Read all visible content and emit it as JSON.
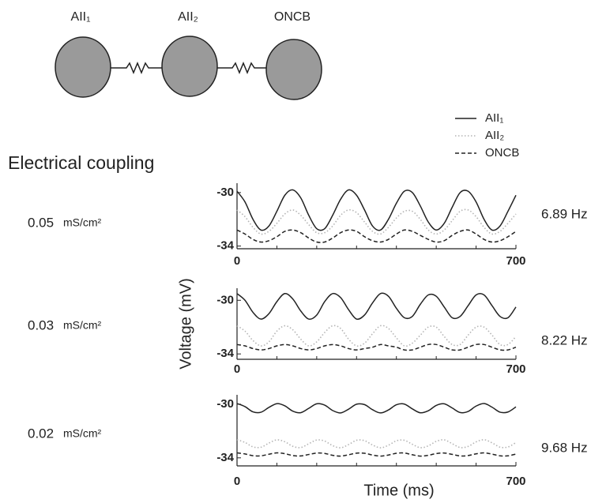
{
  "diagram": {
    "cells": [
      "AII₁",
      "AII₂",
      "ONCB"
    ]
  },
  "heading": "Electrical coupling",
  "chart_data": [
    {
      "type": "line",
      "coupling": "0.05",
      "coupling_unit": "mS/cm²",
      "frequency": "6.89 Hz",
      "x": [
        0,
        20,
        40,
        60,
        80,
        100,
        120,
        140,
        160,
        180,
        200,
        220,
        240,
        260,
        280,
        300,
        320,
        340,
        360,
        380,
        400,
        420,
        440,
        460,
        480,
        500,
        520,
        540,
        560,
        580,
        600,
        620,
        640,
        660,
        680,
        700
      ],
      "xlim": [
        0,
        700
      ],
      "xticks": [
        0,
        700
      ],
      "xminorticks": [
        100,
        200,
        300,
        400,
        500,
        600
      ],
      "ylim": [
        -34.2,
        -29.3
      ],
      "yticks": [
        -34,
        -30
      ],
      "series": [
        {
          "name": "AII₁",
          "color": "#222222",
          "style": "solid",
          "values": [
            -29.9,
            -30.7,
            -32.0,
            -32.8,
            -32.5,
            -31.4,
            -30.2,
            -29.8,
            -30.4,
            -31.7,
            -32.7,
            -32.7,
            -31.7,
            -30.5,
            -29.8,
            -30.2,
            -31.3,
            -32.5,
            -32.8,
            -32.0,
            -30.8,
            -29.9,
            -30.0,
            -31.0,
            -32.2,
            -32.8,
            -32.3,
            -31.1,
            -30.0,
            -29.9,
            -30.7,
            -32.0,
            -32.8,
            -32.5,
            -31.4,
            -30.2
          ]
        },
        {
          "name": "AII₂",
          "color": "#b4b4b4",
          "style": "dotted",
          "values": [
            -31.3,
            -31.8,
            -32.6,
            -33.1,
            -32.9,
            -32.3,
            -31.6,
            -31.3,
            -31.7,
            -32.4,
            -33.0,
            -33.0,
            -32.5,
            -31.7,
            -31.3,
            -31.5,
            -32.2,
            -32.9,
            -33.1,
            -32.6,
            -31.9,
            -31.4,
            -31.4,
            -32.0,
            -32.8,
            -33.1,
            -32.8,
            -32.1,
            -31.4,
            -31.3,
            -31.8,
            -32.6,
            -33.1,
            -32.9,
            -32.3,
            -31.6
          ]
        },
        {
          "name": "ONCB",
          "color": "#222222",
          "style": "dashed",
          "values": [
            -32.8,
            -33.1,
            -33.5,
            -33.7,
            -33.6,
            -33.3,
            -32.9,
            -32.8,
            -33.0,
            -33.4,
            -33.7,
            -33.7,
            -33.4,
            -33.0,
            -32.8,
            -32.9,
            -33.3,
            -33.6,
            -33.7,
            -33.5,
            -33.1,
            -32.8,
            -32.9,
            -33.2,
            -33.5,
            -33.7,
            -33.6,
            -33.2,
            -32.9,
            -32.8,
            -33.1,
            -33.5,
            -33.7,
            -33.6,
            -33.3,
            -32.9
          ]
        }
      ]
    },
    {
      "type": "line",
      "coupling": "0.03",
      "coupling_unit": "mS/cm²",
      "frequency": "8.22 Hz",
      "ylabel": "Voltage (mV)",
      "x": [
        0,
        20,
        40,
        60,
        80,
        100,
        120,
        140,
        160,
        180,
        200,
        220,
        240,
        260,
        280,
        300,
        320,
        340,
        360,
        380,
        400,
        420,
        440,
        460,
        480,
        500,
        520,
        540,
        560,
        580,
        600,
        620,
        640,
        660,
        680,
        700
      ],
      "xlim": [
        0,
        700
      ],
      "xticks": [
        0,
        700
      ],
      "xminorticks": [
        100,
        200,
        300,
        400,
        500,
        600
      ],
      "ylim": [
        -34.4,
        -29.1
      ],
      "yticks": [
        -34,
        -30
      ],
      "series": [
        {
          "color": "#222222",
          "style": "solid",
          "values": [
            -29.5,
            -30.0,
            -30.9,
            -31.4,
            -31.0,
            -30.1,
            -29.5,
            -29.9,
            -30.8,
            -31.4,
            -31.1,
            -30.1,
            -29.5,
            -29.8,
            -30.7,
            -31.4,
            -31.1,
            -30.2,
            -29.5,
            -29.7,
            -30.6,
            -31.3,
            -31.2,
            -30.3,
            -29.6,
            -29.7,
            -30.5,
            -31.3,
            -31.2,
            -30.4,
            -29.6,
            -29.6,
            -30.4,
            -31.2,
            -31.3,
            -30.5
          ]
        },
        {
          "color": "#b4b4b4",
          "style": "dotted",
          "values": [
            -31.9,
            -32.3,
            -33.0,
            -33.4,
            -33.1,
            -32.3,
            -31.9,
            -32.2,
            -32.9,
            -33.4,
            -33.1,
            -32.4,
            -31.9,
            -32.1,
            -32.9,
            -33.4,
            -33.2,
            -32.5,
            -31.9,
            -32.1,
            -32.8,
            -33.4,
            -33.2,
            -32.6,
            -32.0,
            -32.0,
            -32.7,
            -33.3,
            -33.3,
            -32.6,
            -32.0,
            -32.0,
            -32.6,
            -33.3,
            -33.3,
            -32.7
          ]
        },
        {
          "color": "#222222",
          "style": "dashed",
          "values": [
            -33.3,
            -33.4,
            -33.6,
            -33.7,
            -33.6,
            -33.4,
            -33.3,
            -33.4,
            -33.6,
            -33.7,
            -33.6,
            -33.4,
            -33.3,
            -33.4,
            -33.6,
            -33.7,
            -33.6,
            -33.5,
            -33.3,
            -33.4,
            -33.5,
            -33.7,
            -33.7,
            -33.5,
            -33.3,
            -33.3,
            -33.5,
            -33.7,
            -33.7,
            -33.5,
            -33.3,
            -33.3,
            -33.5,
            -33.7,
            -33.7,
            -33.5
          ]
        }
      ]
    },
    {
      "type": "line",
      "coupling": "0.02",
      "coupling_unit": "mS/cm²",
      "frequency": "9.68 Hz",
      "xlabel": "Time (ms)",
      "x": [
        0,
        20,
        40,
        60,
        80,
        100,
        120,
        140,
        160,
        180,
        200,
        220,
        240,
        260,
        280,
        300,
        320,
        340,
        360,
        380,
        400,
        420,
        440,
        460,
        480,
        500,
        520,
        540,
        560,
        580,
        600,
        620,
        640,
        660,
        680,
        700
      ],
      "xlim": [
        0,
        700
      ],
      "xticks": [
        0,
        700
      ],
      "xminorticks": [
        100,
        200,
        300,
        400,
        500,
        600
      ],
      "ylim": [
        -34.6,
        -29.3
      ],
      "yticks": [
        -34,
        -30
      ],
      "series": [
        {
          "color": "#222222",
          "style": "solid",
          "values": [
            -29.95,
            -30.18,
            -30.57,
            -30.6,
            -30.24,
            -29.96,
            -30.12,
            -30.52,
            -30.63,
            -30.31,
            -29.97,
            -30.07,
            -30.47,
            -30.65,
            -30.37,
            -30.0,
            -30.03,
            -30.41,
            -30.65,
            -30.43,
            -30.04,
            -29.99,
            -30.35,
            -30.64,
            -30.49,
            -30.09,
            -29.97,
            -30.28,
            -30.62,
            -30.54,
            -30.14,
            -29.95,
            -30.22,
            -30.59,
            -30.58,
            -30.2
          ]
        },
        {
          "color": "#b4b4b4",
          "style": "dotted",
          "values": [
            -32.65,
            -32.85,
            -33.18,
            -33.21,
            -32.9,
            -32.66,
            -32.8,
            -33.14,
            -33.23,
            -32.95,
            -32.67,
            -32.75,
            -33.09,
            -33.25,
            -33.01,
            -32.69,
            -32.72,
            -33.04,
            -33.25,
            -33.06,
            -32.73,
            -32.69,
            -32.99,
            -33.24,
            -33.11,
            -32.77,
            -32.66,
            -32.94,
            -33.23,
            -33.15,
            -32.81,
            -32.65,
            -32.88,
            -33.2,
            -33.19,
            -32.86
          ]
        },
        {
          "color": "#222222",
          "style": "dashed",
          "values": [
            -33.63,
            -33.71,
            -33.84,
            -33.85,
            -33.73,
            -33.63,
            -33.69,
            -33.83,
            -33.86,
            -33.75,
            -33.64,
            -33.67,
            -33.81,
            -33.87,
            -33.77,
            -33.65,
            -33.66,
            -33.79,
            -33.87,
            -33.79,
            -33.66,
            -33.64,
            -33.77,
            -33.87,
            -33.81,
            -33.68,
            -33.64,
            -33.74,
            -33.86,
            -33.83,
            -33.7,
            -33.63,
            -33.72,
            -33.85,
            -33.85,
            -33.72
          ]
        }
      ]
    }
  ]
}
